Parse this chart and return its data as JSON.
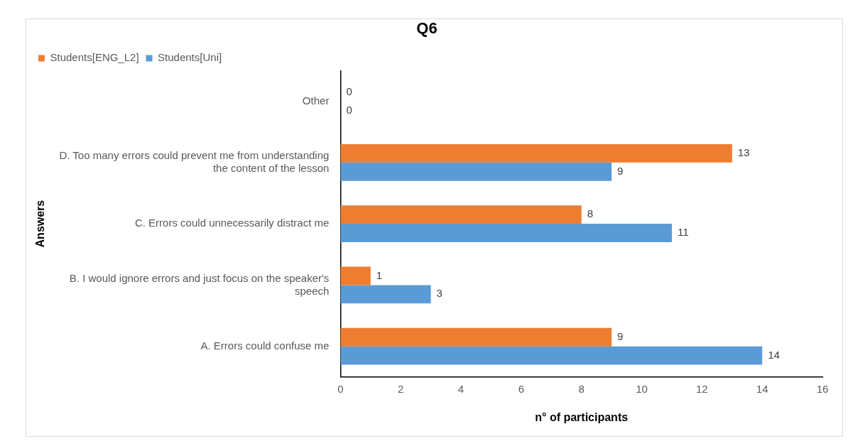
{
  "chart_data": {
    "type": "bar",
    "orientation": "horizontal",
    "title": "Q6",
    "xlabel": "n° of participants",
    "ylabel": "Answers",
    "categories": [
      "Other",
      "D. Too many errors could prevent me from understanding the content of the lesson",
      "C. Errors could unnecessarily distract me",
      "B. I would ignore errors and just focus on the speaker's speech",
      "A. Errors could confuse me"
    ],
    "series": [
      {
        "name": "Students[ENG_L2]",
        "color": "#ed7d31",
        "values": [
          0,
          13,
          8,
          1,
          9
        ]
      },
      {
        "name": "Students[Uni]",
        "color": "#5b9bd5",
        "values": [
          0,
          9,
          11,
          3,
          14
        ]
      }
    ],
    "xlim": [
      0,
      16
    ],
    "xticks": [
      0,
      2,
      4,
      6,
      8,
      10,
      12,
      14,
      16
    ],
    "grid": false,
    "legend": "top left",
    "data_labels": true
  }
}
